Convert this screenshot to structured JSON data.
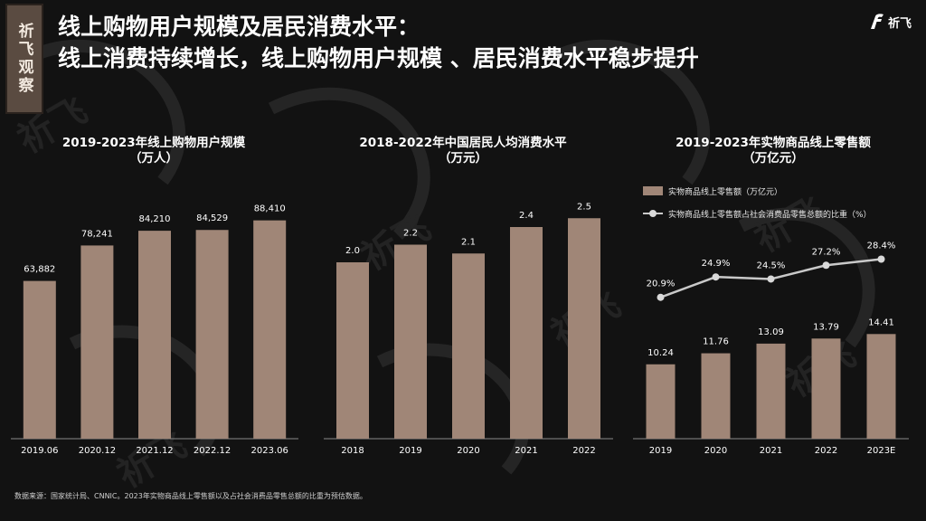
{
  "brand_tag": "祈飞观察",
  "title_line1": "线上购物用户规模及居民消费水平：",
  "title_line2": "线上消费持续增长，线上购物用户规模 、居民消费水平稳步提升",
  "logo_text": "祈飞",
  "watermark": "祈飞",
  "colors": {
    "bar": "#a08677",
    "line": "#c9c9c9",
    "background": "#121212"
  },
  "source": "数据来源：国家统计局、CNNIC。2023年实物商品线上零售额以及占社会消费品零售总额的比重为预估数据。",
  "chart_data": [
    {
      "type": "bar",
      "title": "2019-2023年线上购物用户规模",
      "unit": "（万人）",
      "categories": [
        "2019.06",
        "2020.12",
        "2021.12",
        "2022.12",
        "2023.06"
      ],
      "values": [
        63882,
        78241,
        84210,
        84529,
        88410
      ],
      "value_labels": [
        "63,882",
        "78,241",
        "84,210",
        "84,529",
        "88,410"
      ],
      "ylim": [
        0,
        100000
      ]
    },
    {
      "type": "bar",
      "title": "2018-2022年中国居民人均消费水平",
      "unit": "（万元）",
      "categories": [
        "2018",
        "2019",
        "2020",
        "2021",
        "2022"
      ],
      "values": [
        2.0,
        2.2,
        2.1,
        2.4,
        2.5
      ],
      "value_labels": [
        "2.0",
        "2.2",
        "2.1",
        "2.4",
        "2.5"
      ],
      "ylim": [
        0,
        2.8
      ]
    },
    {
      "type": "bar+line",
      "title": "2019-2023年实物商品线上零售额",
      "unit": "（万亿元）",
      "categories": [
        "2019",
        "2020",
        "2021",
        "2022",
        "2023E"
      ],
      "series": [
        {
          "name": "实物商品线上零售额（万亿元）",
          "type": "bar",
          "values": [
            10.24,
            11.76,
            13.09,
            13.79,
            14.41
          ],
          "labels": [
            "10.24",
            "11.76",
            "13.09",
            "13.79",
            "14.41"
          ]
        },
        {
          "name": "实物商品线上零售额占社会消费品零售总额的比重（%）",
          "type": "line",
          "values": [
            20.9,
            24.9,
            24.5,
            27.2,
            28.4
          ],
          "labels": [
            "20.9%",
            "24.9%",
            "24.5%",
            "27.2%",
            "28.4%"
          ]
        }
      ],
      "bar_ylim": [
        0,
        34
      ],
      "line_ylim": [
        0,
        34
      ]
    }
  ]
}
